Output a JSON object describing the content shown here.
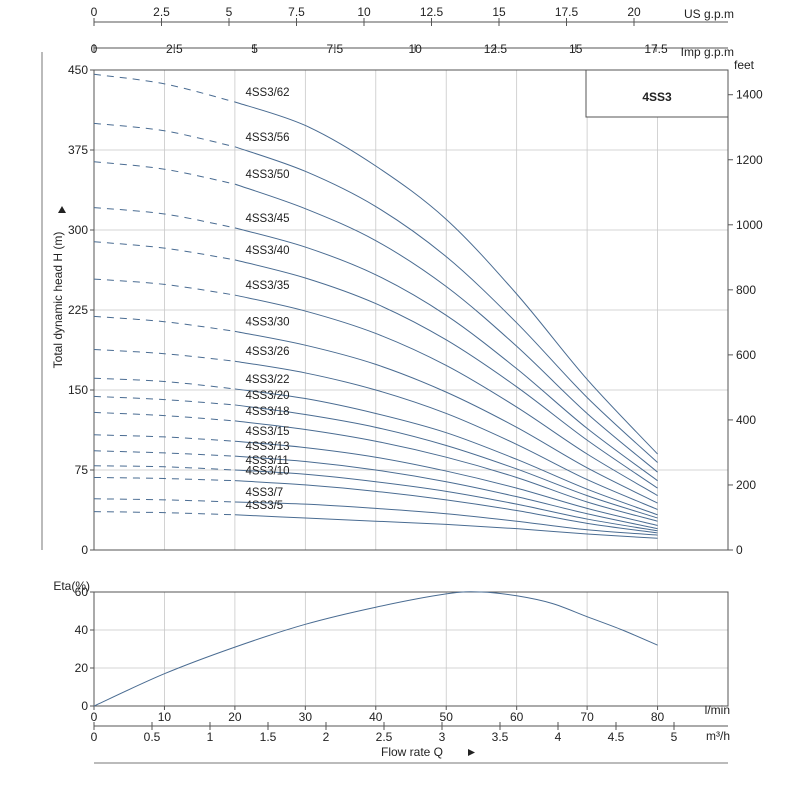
{
  "chart_data": [
    {
      "type": "line",
      "title": "4SS3",
      "ylabel": "Total dynamic head H (m)",
      "y2label": "feet",
      "xlabel": "Flow rate Q",
      "xunit": "l/min",
      "xlim": [
        0,
        90
      ],
      "ylim": [
        0,
        450
      ],
      "y2lim": [
        0,
        1476
      ],
      "grid": true,
      "x_ticks": [
        0,
        10,
        20,
        30,
        40,
        50,
        60,
        70,
        80
      ],
      "y_ticks": [
        0,
        75,
        150,
        225,
        300,
        375,
        450
      ],
      "y2_ticks": [
        0,
        200,
        400,
        600,
        800,
        1000,
        1200,
        1400
      ],
      "top_axes": [
        {
          "unit": "US g.p.m",
          "ticks": [
            "0",
            "2.5",
            "5",
            "7.5",
            "10",
            "12.5",
            "15",
            "17.5",
            "20"
          ]
        },
        {
          "unit": "Imp g.p.m",
          "ticks": [
            "0",
            "2.5",
            "5",
            "7.5",
            "10",
            "12.5",
            "15",
            "17.5"
          ]
        }
      ],
      "m3h_axis": {
        "unit": "m³/h",
        "ticks": [
          "0",
          "0.5",
          "1",
          "1.5",
          "2",
          "2.5",
          "3",
          "3.5",
          "4",
          "4.5",
          "5"
        ]
      },
      "dash_until_x": 20,
      "series": [
        {
          "name": "4SS3/62",
          "x": [
            0,
            10,
            20,
            30,
            40,
            50,
            60,
            70,
            80
          ],
          "y": [
            446,
            437,
            420,
            398,
            360,
            310,
            240,
            160,
            90
          ]
        },
        {
          "name": "4SS3/56",
          "x": [
            0,
            10,
            20,
            30,
            40,
            50,
            60,
            70,
            80
          ],
          "y": [
            400,
            393,
            378,
            355,
            322,
            275,
            213,
            143,
            82
          ]
        },
        {
          "name": "4SS3/50",
          "x": [
            0,
            10,
            20,
            30,
            40,
            50,
            60,
            70,
            80
          ],
          "y": [
            364,
            357,
            343,
            320,
            290,
            247,
            191,
            128,
            73
          ]
        },
        {
          "name": "4SS3/45",
          "x": [
            0,
            10,
            20,
            30,
            40,
            50,
            60,
            70,
            80
          ],
          "y": [
            321,
            315,
            302,
            284,
            258,
            220,
            170,
            114,
            65
          ]
        },
        {
          "name": "4SS3/40",
          "x": [
            0,
            10,
            20,
            30,
            40,
            50,
            60,
            70,
            80
          ],
          "y": [
            289,
            283,
            272,
            255,
            231,
            197,
            153,
            103,
            58
          ]
        },
        {
          "name": "4SS3/35",
          "x": [
            0,
            10,
            20,
            30,
            40,
            50,
            60,
            70,
            80
          ],
          "y": [
            254,
            249,
            239,
            224,
            203,
            173,
            134,
            90,
            51
          ]
        },
        {
          "name": "4SS3/30",
          "x": [
            0,
            10,
            20,
            30,
            40,
            50,
            60,
            70,
            80
          ],
          "y": [
            219,
            214,
            205,
            192,
            174,
            148,
            115,
            77,
            44
          ]
        },
        {
          "name": "4SS3/26",
          "x": [
            0,
            10,
            20,
            30,
            40,
            50,
            60,
            70,
            80
          ],
          "y": [
            188,
            184,
            177,
            166,
            150,
            128,
            99,
            66,
            38
          ]
        },
        {
          "name": "4SS3/22",
          "x": [
            0,
            10,
            20,
            30,
            40,
            50,
            60,
            70,
            80
          ],
          "y": [
            161,
            158,
            151,
            142,
            128,
            110,
            85,
            57,
            33
          ]
        },
        {
          "name": "4SS3/20",
          "x": [
            0,
            10,
            20,
            30,
            40,
            50,
            60,
            70,
            80
          ],
          "y": [
            144,
            141,
            136,
            127,
            115,
            98,
            76,
            51,
            30
          ]
        },
        {
          "name": "4SS3/18",
          "x": [
            0,
            10,
            20,
            30,
            40,
            50,
            60,
            70,
            80
          ],
          "y": [
            129,
            126,
            121,
            113,
            102,
            87,
            68,
            45,
            27
          ]
        },
        {
          "name": "4SS3/15",
          "x": [
            0,
            10,
            20,
            30,
            40,
            50,
            60,
            70,
            80
          ],
          "y": [
            108,
            106,
            102,
            96,
            87,
            74,
            58,
            39,
            23
          ]
        },
        {
          "name": "4SS3/13",
          "x": [
            0,
            10,
            20,
            30,
            40,
            50,
            60,
            70,
            80
          ],
          "y": [
            93,
            91,
            88,
            83,
            75,
            64,
            50,
            34,
            20
          ]
        },
        {
          "name": "4SS3/11",
          "x": [
            0,
            10,
            20,
            30,
            40,
            50,
            60,
            70,
            80
          ],
          "y": [
            79,
            78,
            75,
            71,
            64,
            55,
            43,
            29,
            18
          ]
        },
        {
          "name": "4SS3/10",
          "x": [
            0,
            10,
            20,
            30,
            40,
            50,
            60,
            70,
            80
          ],
          "y": [
            68,
            67,
            65,
            61,
            55,
            47,
            37,
            25,
            16
          ]
        },
        {
          "name": "4SS3/7",
          "x": [
            0,
            10,
            20,
            30,
            40,
            50,
            60,
            70,
            80
          ],
          "y": [
            48,
            47,
            45,
            43,
            39,
            34,
            27,
            19,
            14
          ]
        },
        {
          "name": "4SS3/5",
          "x": [
            0,
            10,
            20,
            30,
            40,
            50,
            60,
            70,
            80
          ],
          "y": [
            36,
            35,
            33,
            30,
            27,
            24,
            20,
            15,
            11
          ]
        }
      ]
    },
    {
      "type": "line",
      "ylabel": "Eta(%)",
      "xlim": [
        0,
        90
      ],
      "ylim": [
        0,
        60
      ],
      "y_ticks": [
        0,
        20,
        40,
        60
      ],
      "grid": true,
      "series": [
        {
          "x": [
            0,
            10,
            20,
            30,
            40,
            50,
            55,
            60,
            65,
            70,
            75,
            80
          ],
          "y": [
            0,
            17,
            31,
            43,
            52,
            59,
            60,
            58,
            54,
            47,
            40,
            32
          ]
        }
      ]
    }
  ]
}
